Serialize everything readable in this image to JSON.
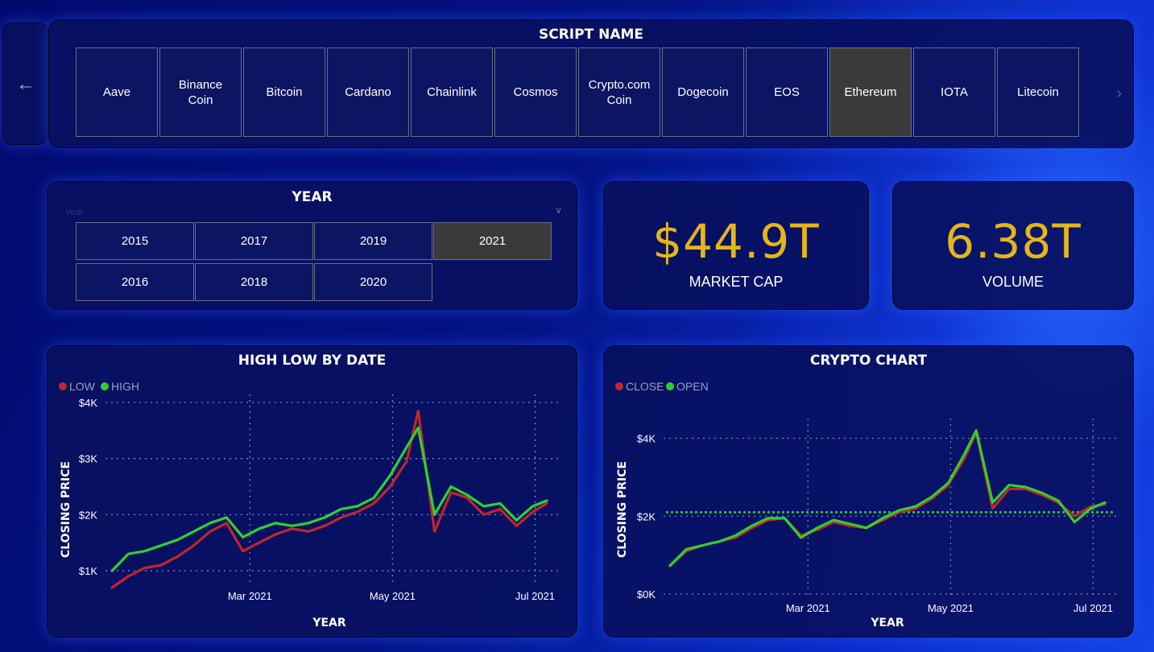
{
  "nav": {
    "back_icon": "arrow-left-icon"
  },
  "script_slicer": {
    "title": "SCRIPT NAME",
    "items": [
      "Aave",
      "Binance Coin",
      "Bitcoin",
      "Cardano",
      "Chainlink",
      "Cosmos",
      "Crypto.com Coin",
      "Dogecoin",
      "EOS",
      "Ethereum",
      "IOTA",
      "Litecoin"
    ],
    "selected": "Ethereum"
  },
  "year_slicer": {
    "title": "YEAR",
    "placeholder": "Year",
    "items": [
      "2015",
      "2017",
      "2019",
      "2021",
      "2016",
      "2018",
      "2020"
    ],
    "selected": "2021"
  },
  "kpis": {
    "market_cap": {
      "value": "$44.9T",
      "label": "MARKET CAP"
    },
    "volume": {
      "value": "6.38T",
      "label": "VOLUME"
    }
  },
  "colors": {
    "accent": "#e3b61a",
    "red_series": "#c0262b",
    "green_series": "#2ed22e",
    "selected_tile": "#3a3a3a"
  },
  "chart_data": [
    {
      "type": "line",
      "title": "HIGH LOW BY DATE",
      "xlabel": "YEAR",
      "ylabel": "CLOSING PRICE",
      "x_ticks": [
        "Mar 2021",
        "May 2021",
        "Jul 2021"
      ],
      "y_ticks": [
        "$1K",
        "$2K",
        "$3K",
        "$4K"
      ],
      "ylim": [
        800,
        4000
      ],
      "x": [
        "2021-01-01",
        "2021-01-08",
        "2021-01-15",
        "2021-01-22",
        "2021-01-29",
        "2021-02-05",
        "2021-02-12",
        "2021-02-19",
        "2021-02-26",
        "2021-03-05",
        "2021-03-12",
        "2021-03-19",
        "2021-03-26",
        "2021-04-02",
        "2021-04-09",
        "2021-04-16",
        "2021-04-23",
        "2021-04-30",
        "2021-05-07",
        "2021-05-12",
        "2021-05-19",
        "2021-05-26",
        "2021-06-02",
        "2021-06-09",
        "2021-06-16",
        "2021-06-23",
        "2021-06-30",
        "2021-07-06"
      ],
      "series": [
        {
          "name": "LOW",
          "color": "#c0262b",
          "values": [
            700,
            900,
            1050,
            1100,
            1250,
            1450,
            1700,
            1850,
            1350,
            1500,
            1650,
            1750,
            1700,
            1800,
            1950,
            2050,
            2200,
            2500,
            2950,
            3850,
            1700,
            2400,
            2300,
            2000,
            2100,
            1800,
            2050,
            2200
          ]
        },
        {
          "name": "HIGH",
          "color": "#2ed22e",
          "values": [
            1000,
            1300,
            1350,
            1450,
            1550,
            1700,
            1850,
            1950,
            1600,
            1750,
            1850,
            1800,
            1850,
            1950,
            2100,
            2150,
            2300,
            2700,
            3200,
            3550,
            2000,
            2500,
            2350,
            2150,
            2200,
            1900,
            2150,
            2250
          ]
        }
      ],
      "legend_position": "top-left",
      "grid": true
    },
    {
      "type": "line",
      "title": "CRYPTO CHART",
      "xlabel": "YEAR",
      "ylabel": "CLOSING PRICE",
      "x_ticks": [
        "Mar 2021",
        "May 2021",
        "Jul 2021"
      ],
      "y_ticks": [
        "$0K",
        "$2K",
        "$4K"
      ],
      "ylim": [
        0,
        4300
      ],
      "x": [
        "2021-01-01",
        "2021-01-08",
        "2021-01-15",
        "2021-01-22",
        "2021-01-29",
        "2021-02-05",
        "2021-02-12",
        "2021-02-19",
        "2021-02-26",
        "2021-03-05",
        "2021-03-12",
        "2021-03-19",
        "2021-03-26",
        "2021-04-02",
        "2021-04-09",
        "2021-04-16",
        "2021-04-23",
        "2021-04-30",
        "2021-05-07",
        "2021-05-12",
        "2021-05-19",
        "2021-05-26",
        "2021-06-02",
        "2021-06-09",
        "2021-06-16",
        "2021-06-23",
        "2021-06-30",
        "2021-07-06"
      ],
      "series": [
        {
          "name": "CLOSE",
          "color": "#c0262b",
          "values": [
            730,
            1100,
            1250,
            1350,
            1450,
            1700,
            1900,
            1950,
            1500,
            1650,
            1850,
            1750,
            1700,
            1900,
            2100,
            2200,
            2450,
            2800,
            3500,
            4150,
            2200,
            2700,
            2700,
            2550,
            2350,
            2000,
            2250,
            2300
          ]
        },
        {
          "name": "OPEN",
          "color": "#2ed22e",
          "values": [
            730,
            1150,
            1250,
            1350,
            1500,
            1750,
            1950,
            1950,
            1450,
            1700,
            1900,
            1800,
            1700,
            1950,
            2150,
            2250,
            2500,
            2850,
            3600,
            4200,
            2350,
            2800,
            2750,
            2600,
            2400,
            1850,
            2200,
            2350
          ]
        }
      ],
      "reference_line": {
        "value": 2100,
        "color": "#2ed22e",
        "style": "dotted"
      },
      "legend_position": "top-left",
      "grid": true
    }
  ]
}
